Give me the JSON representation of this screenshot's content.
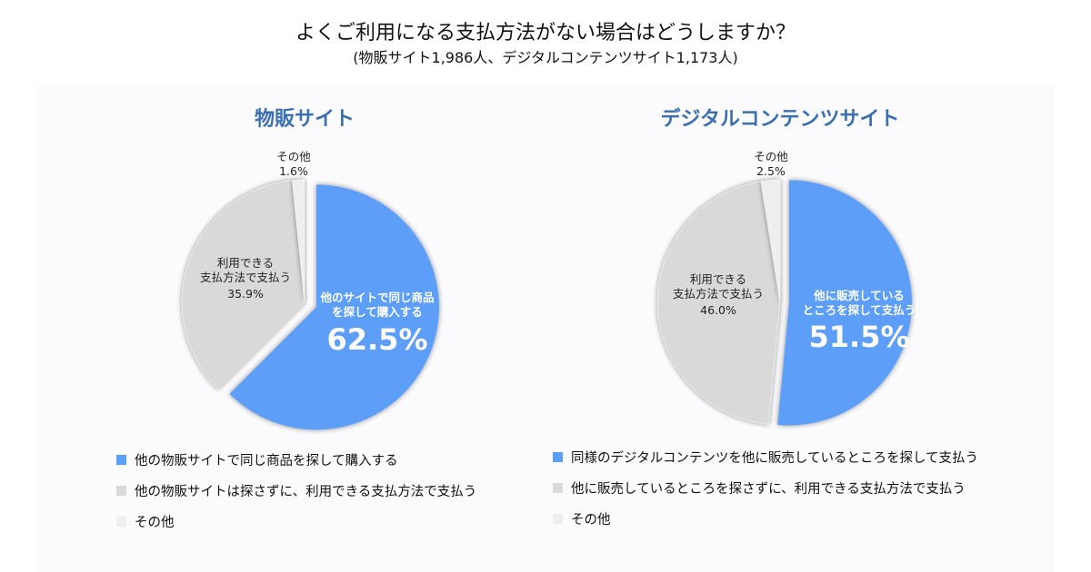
{
  "header": {
    "title": "よくご利用になる支払方法がない場合はどうしますか？",
    "subtitle": "(物販サイト1,986人、デジタルコンテンツサイト1,173人)"
  },
  "colors": {
    "blue": "#5b9ef8",
    "gray": "#d9d9d9",
    "light": "#eeeeee",
    "title": "#3a6fb0"
  },
  "chart_data": [
    {
      "type": "pie",
      "title": "物販サイト",
      "slices": [
        {
          "label": "他のサイトで同じ商品を探して購入する",
          "value": 62.5,
          "pct": "62.5%",
          "inner_lines": [
            "他のサイトで同じ商品",
            "を探して購入する"
          ]
        },
        {
          "label": "他の物販サイトは探さずに、利用できる支払方法で支払う",
          "value": 35.9,
          "pct": "35.9%",
          "inner_lines": [
            "利用できる",
            "支払方法で支払う"
          ]
        },
        {
          "label": "その他",
          "value": 1.6,
          "pct": "1.6%",
          "inner_lines": [
            "その他"
          ]
        }
      ],
      "legend": [
        "他の物販サイトで同じ商品を探して購入する",
        "他の物販サイトは探さずに、利用できる支払方法で支払う",
        "その他"
      ]
    },
    {
      "type": "pie",
      "title": "デジタルコンテンツサイト",
      "slices": [
        {
          "label": "他に販売しているところを探して支払う",
          "value": 51.5,
          "pct": "51.5%",
          "inner_lines": [
            "他に販売している",
            "ところを探して支払う"
          ]
        },
        {
          "label": "利用できる支払方法で支払う",
          "value": 46.0,
          "pct": "46.0%",
          "inner_lines": [
            "利用できる",
            "支払方法で支払う"
          ]
        },
        {
          "label": "その他",
          "value": 2.5,
          "pct": "2.5%",
          "inner_lines": [
            "その他"
          ]
        }
      ],
      "legend": [
        "同様のデジタルコンテンツを他に販売しているところを探して支払う",
        "他に販売しているところを探さずに、利用できる支払方法で支払う",
        "その他"
      ]
    }
  ]
}
